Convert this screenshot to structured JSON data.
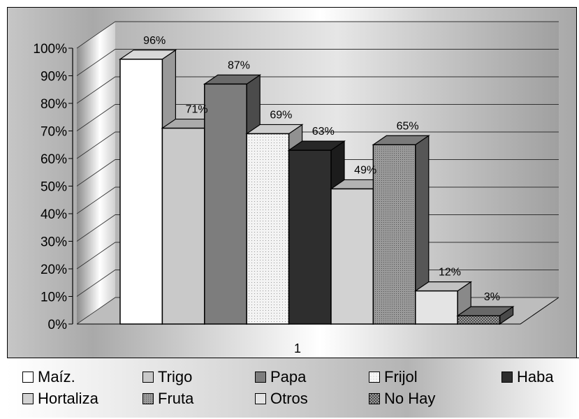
{
  "chart_data": {
    "type": "bar",
    "categories": [
      "1"
    ],
    "ylim": [
      0,
      100
    ],
    "y_ticks": [
      "0%",
      "10%",
      "20%",
      "30%",
      "40%",
      "50%",
      "60%",
      "70%",
      "80%",
      "90%",
      "100%"
    ],
    "grid": true,
    "legend_position": "bottom",
    "series": [
      {
        "name": "Maíz.",
        "value": 96,
        "label": "96%",
        "color": "#ffffff",
        "pattern": "none"
      },
      {
        "name": "Trigo",
        "value": 71,
        "label": "71%",
        "color": "#c9c9c9",
        "pattern": "none"
      },
      {
        "name": "Papa",
        "value": 87,
        "label": "87%",
        "color": "#7d7d7d",
        "pattern": "none"
      },
      {
        "name": "Frijol",
        "value": 69,
        "label": "69%",
        "color": "#f1f1f1",
        "pattern": "dots"
      },
      {
        "name": "Haba",
        "value": 63,
        "label": "63%",
        "color": "#2e2e2e",
        "pattern": "none"
      },
      {
        "name": "Hortaliza",
        "value": 49,
        "label": "49%",
        "color": "#d2d2d2",
        "pattern": "none"
      },
      {
        "name": "Fruta",
        "value": 65,
        "label": "65%",
        "color": "#8f8f8f",
        "pattern": "dense-dots"
      },
      {
        "name": "Otros",
        "value": 12,
        "label": "12%",
        "color": "#e4e4e4",
        "pattern": "none"
      },
      {
        "name": "No Hay",
        "value": 3,
        "label": "3%",
        "color": "#7a7a7a",
        "pattern": "checker"
      }
    ]
  }
}
